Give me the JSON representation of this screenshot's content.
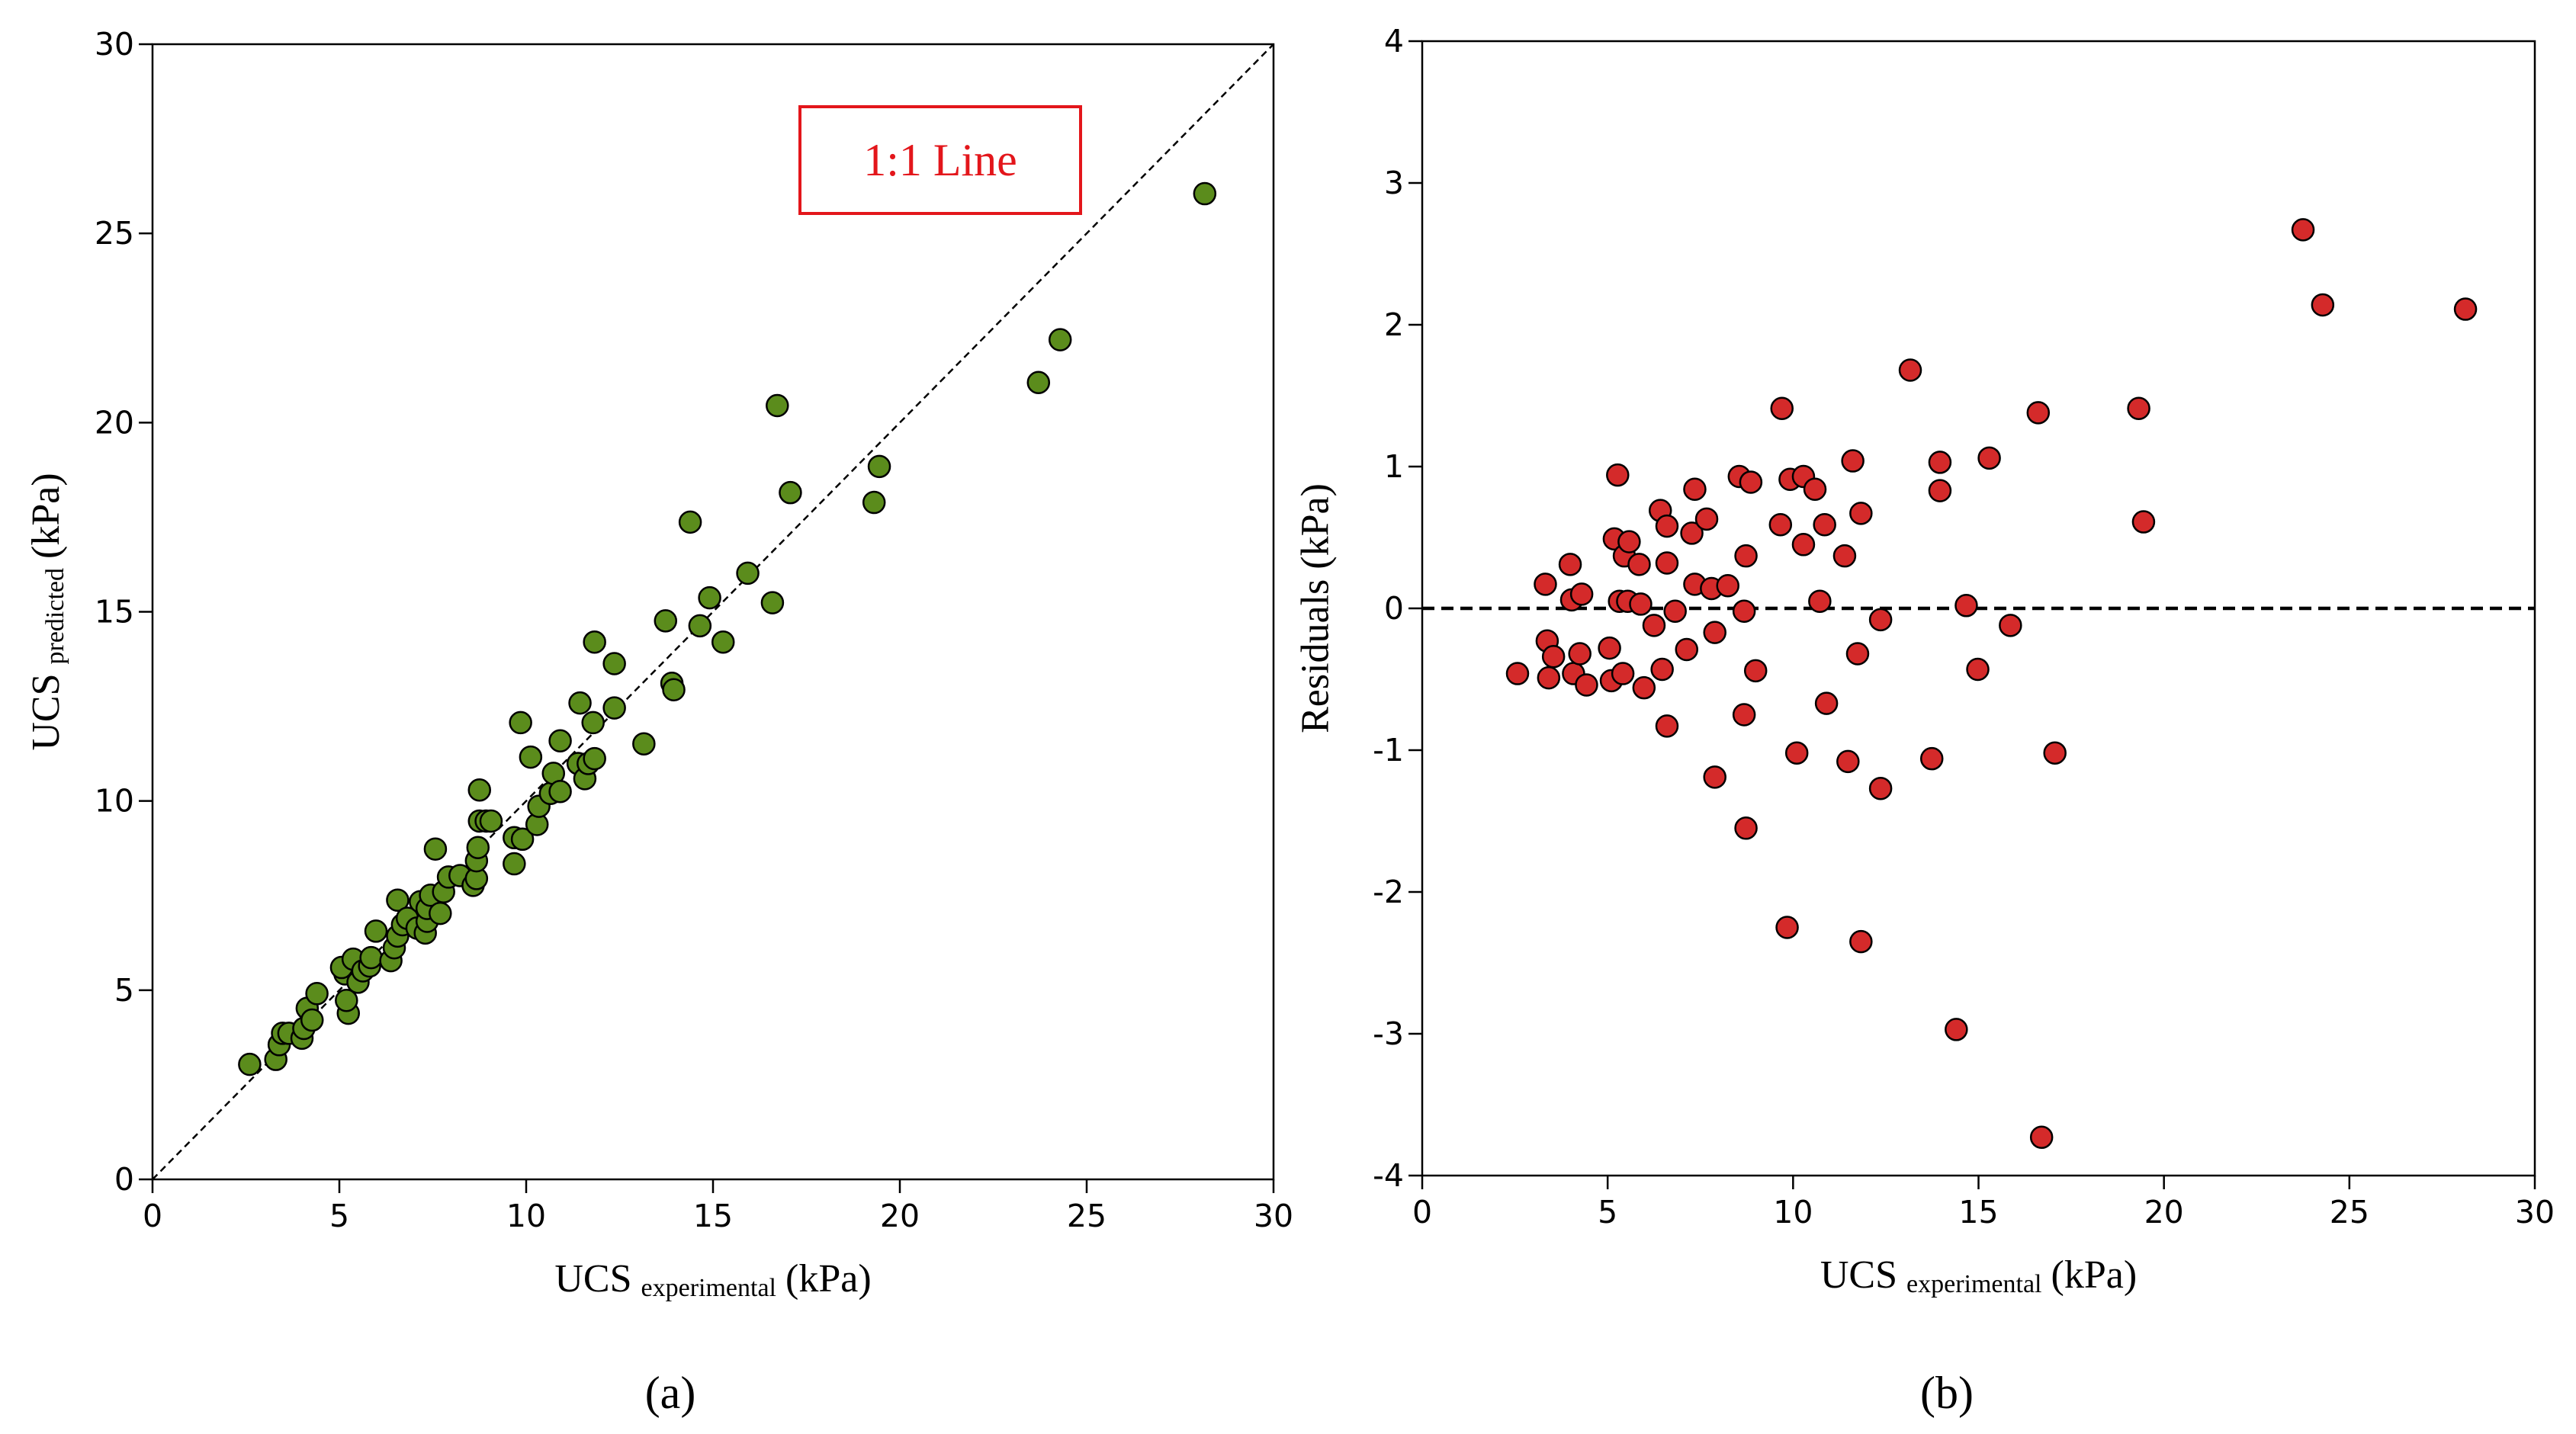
{
  "chart_data": [
    {
      "type": "scatter",
      "x_label": {
        "text": "UCS",
        "sub": "experimental",
        "unit": "(kPa)"
      },
      "y_label": {
        "text": "UCS",
        "sub": "predicted",
        "unit": "(kPa)"
      },
      "panel_label": "(a)",
      "annotation": "1:1 Line",
      "diagonal": true,
      "color": "#5b8c1c",
      "xlim": [
        0,
        30
      ],
      "ylim": [
        0,
        30
      ],
      "xticks": [
        0,
        5,
        10,
        15,
        20,
        25,
        30
      ],
      "yticks": [
        0,
        5,
        10,
        15,
        20,
        25,
        30
      ],
      "x": [
        2.6,
        3.3,
        3.39,
        3.48,
        3.65,
        4.0,
        4.05,
        4.14,
        4.27,
        4.4,
        5.24,
        5.19,
        5.15,
        5.06,
        5.37,
        5.5,
        5.63,
        5.81,
        5.85,
        5.98,
        6.38,
        6.47,
        6.56,
        6.69,
        6.56,
        6.82,
        7.08,
        7.17,
        7.3,
        7.35,
        7.35,
        7.44,
        7.57,
        7.7,
        7.79,
        7.92,
        8.23,
        8.58,
        8.67,
        8.67,
        8.71,
        8.75,
        8.75,
        8.93,
        9.06,
        9.68,
        9.68,
        9.9,
        9.85,
        10.12,
        10.29,
        10.34,
        10.65,
        10.73,
        10.91,
        10.91,
        11.44,
        11.39,
        11.57,
        11.66,
        11.79,
        11.83,
        11.83,
        12.36,
        12.36,
        13.15,
        13.73,
        13.9,
        13.95,
        14.39,
        14.65,
        14.91,
        15.27,
        15.93,
        16.59,
        16.72,
        17.07,
        19.31,
        19.45,
        23.71,
        24.29,
        28.16
      ],
      "values": [
        3.04,
        3.17,
        3.56,
        3.86,
        3.86,
        3.73,
        3.99,
        4.52,
        4.21,
        4.91,
        4.39,
        4.73,
        5.43,
        5.6,
        5.82,
        5.21,
        5.51,
        5.64,
        5.86,
        6.56,
        5.78,
        6.12,
        6.43,
        6.73,
        7.38,
        6.9,
        6.64,
        7.34,
        6.51,
        6.82,
        7.16,
        7.51,
        8.73,
        7.03,
        7.6,
        7.99,
        8.03,
        7.77,
        7.95,
        8.42,
        8.77,
        9.47,
        10.29,
        9.47,
        9.47,
        8.34,
        9.03,
        8.99,
        12.07,
        11.16,
        9.38,
        9.86,
        10.2,
        10.73,
        11.59,
        10.25,
        12.59,
        10.99,
        10.59,
        10.99,
        12.07,
        14.2,
        11.12,
        13.63,
        12.46,
        11.51,
        14.76,
        13.11,
        12.94,
        17.37,
        14.63,
        15.37,
        14.2,
        16.02,
        15.24,
        20.45,
        18.15,
        17.89,
        18.84,
        21.06,
        22.19,
        26.05
      ]
    },
    {
      "type": "scatter",
      "x_label": {
        "text": "UCS",
        "sub": "experimental",
        "unit": "(kPa)"
      },
      "y_label": "Residuals (kPa)",
      "panel_label": "(b)",
      "hline": 0,
      "color": "#d42a2a",
      "xlim": [
        0,
        30
      ],
      "ylim": [
        -4,
        4
      ],
      "xticks": [
        0,
        5,
        10,
        15,
        20,
        25,
        30
      ],
      "yticks": [
        -4,
        -3,
        -2,
        -1,
        0,
        1,
        2,
        3,
        4
      ],
      "x": [
        2.57,
        3.32,
        3.37,
        3.41,
        3.54,
        3.99,
        4.03,
        4.08,
        4.25,
        4.3,
        4.43,
        5.05,
        5.1,
        5.27,
        5.18,
        5.32,
        5.41,
        5.45,
        5.58,
        5.54,
        5.85,
        5.89,
        5.98,
        6.25,
        6.42,
        6.47,
        6.6,
        6.6,
        6.6,
        6.82,
        7.13,
        7.27,
        7.35,
        7.35,
        7.67,
        7.8,
        7.89,
        7.89,
        8.24,
        8.55,
        8.68,
        8.68,
        8.73,
        8.73,
        8.86,
        8.99,
        9.66,
        9.7,
        9.84,
        9.92,
        10.1,
        10.28,
        10.28,
        10.59,
        10.72,
        10.85,
        10.9,
        11.39,
        11.48,
        11.61,
        11.74,
        11.83,
        11.83,
        12.36,
        12.36,
        13.16,
        13.74,
        13.96,
        13.96,
        14.4,
        14.67,
        14.98,
        15.29,
        15.86,
        16.61,
        17.06,
        16.7,
        19.32,
        19.45,
        23.75,
        24.28,
        28.13
      ],
      "values": [
        -0.46,
        0.17,
        -0.23,
        -0.49,
        -0.34,
        0.31,
        0.06,
        -0.46,
        -0.32,
        0.1,
        -0.54,
        -0.28,
        -0.51,
        0.94,
        0.49,
        0.05,
        -0.46,
        0.37,
        0.47,
        0.05,
        0.31,
        0.03,
        -0.56,
        -0.12,
        0.69,
        -0.43,
        0.58,
        0.32,
        -0.83,
        -0.02,
        -0.29,
        0.53,
        0.84,
        0.17,
        0.63,
        0.14,
        -0.17,
        -1.19,
        0.16,
        0.93,
        -0.02,
        -0.75,
        0.37,
        -1.55,
        0.89,
        -0.44,
        0.59,
        1.41,
        -2.25,
        0.91,
        -1.02,
        0.93,
        0.45,
        0.84,
        0.05,
        0.59,
        -0.67,
        0.37,
        -1.08,
        1.04,
        -0.32,
        0.67,
        -2.35,
        -0.08,
        -1.27,
        1.68,
        -1.06,
        0.83,
        1.03,
        -2.97,
        0.02,
        -0.43,
        1.06,
        -0.12,
        1.38,
        -1.02,
        -3.73,
        1.41,
        0.61,
        2.67,
        2.14,
        2.11
      ]
    }
  ]
}
